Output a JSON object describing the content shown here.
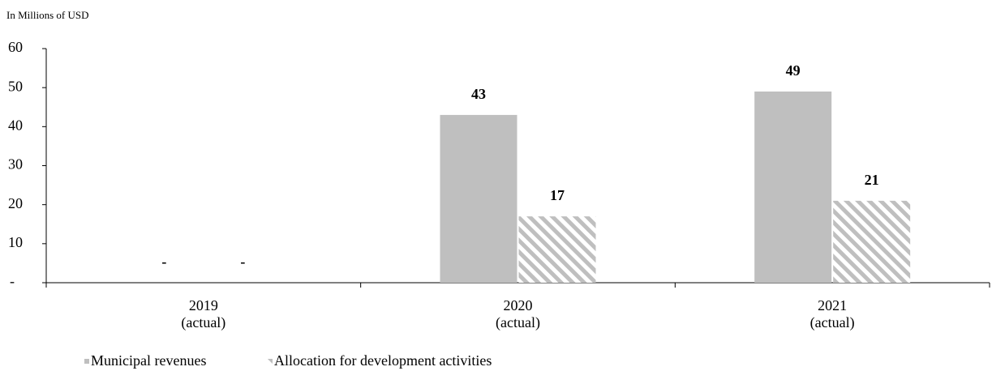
{
  "chart_data": {
    "type": "bar",
    "axis_label": "In Millions of USD",
    "categories": [
      "2019 (actual)",
      "2020 (actual)",
      "2021 (actual)"
    ],
    "series": [
      {
        "name": "Municipal revenues",
        "color": "#bfbfbf",
        "values": [
          0,
          43,
          49
        ],
        "value_labels": [
          "-",
          "43",
          "49"
        ]
      },
      {
        "name": "Allocation for development activities",
        "color": "#bfbfbf",
        "pattern": "hatch",
        "values": [
          0,
          17,
          21
        ],
        "value_labels": [
          "-",
          "17",
          "21"
        ]
      }
    ],
    "ylim": [
      0,
      60
    ],
    "yticks": [
      {
        "value": 0,
        "label": "-"
      },
      10,
      20,
      30,
      40,
      50,
      60
    ],
    "grid": false,
    "legend": "bottom-left"
  }
}
